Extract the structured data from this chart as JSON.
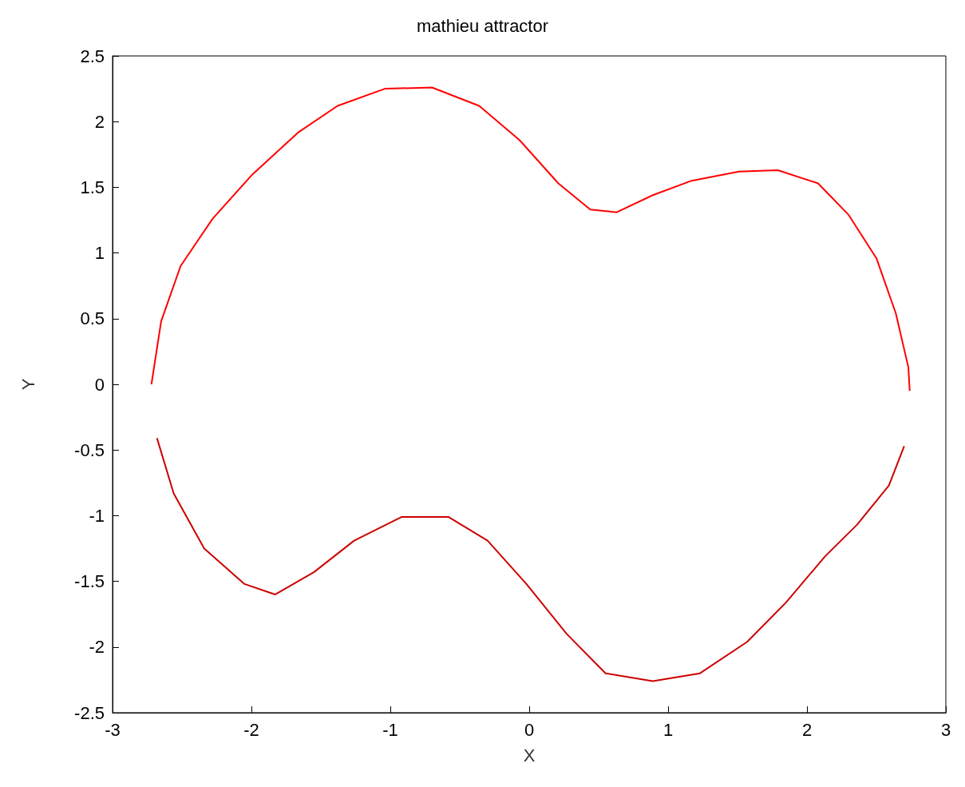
{
  "chart_data": {
    "type": "line",
    "title": "mathieu attractor",
    "xlabel": "X",
    "ylabel": "Y",
    "xlim": [
      -3,
      3
    ],
    "xticks": [
      -3,
      -2,
      -1,
      0,
      1,
      2,
      3
    ],
    "ylim": [
      -2.5,
      2.5
    ],
    "yticks": [
      -2.5,
      -2,
      -1.5,
      -1,
      -0.5,
      0,
      0.5,
      1,
      1.5,
      2,
      2.5
    ],
    "grid": false,
    "marker": "none",
    "line_style": "solid",
    "series": [
      {
        "color": "#ff0000",
        "x": [
          -2.72,
          -2.65,
          -2.51,
          -2.28,
          -2.0,
          -1.66,
          -1.38,
          -1.04,
          -0.7,
          -0.36,
          -0.07,
          0.21,
          0.44,
          0.63,
          0.89,
          1.17,
          1.51,
          1.79,
          2.08,
          2.3,
          2.5,
          2.64,
          2.73,
          2.74
        ],
        "values": [
          0,
          0.48,
          0.9,
          1.26,
          1.59,
          1.92,
          2.12,
          2.25,
          2.26,
          2.12,
          1.86,
          1.53,
          1.33,
          1.31,
          1.44,
          1.55,
          1.62,
          1.63,
          1.53,
          1.29,
          0.96,
          0.54,
          0.13,
          -0.05
        ]
      },
      {
        "color": "#cc0000",
        "x": [
          -2.68,
          -2.56,
          -2.34,
          -2.05,
          -1.83,
          -1.55,
          -1.26,
          -0.92,
          -0.58,
          -0.3,
          -0.02,
          0.27,
          0.55,
          0.89,
          1.23,
          1.57,
          1.85,
          2.13,
          2.36,
          2.59,
          2.7
        ],
        "values": [
          -0.41,
          -0.83,
          -1.25,
          -1.52,
          -1.6,
          -1.43,
          -1.19,
          -1.01,
          -1.01,
          -1.19,
          -1.52,
          -1.9,
          -2.2,
          -2.26,
          -2.2,
          -1.96,
          -1.66,
          -1.31,
          -1.07,
          -0.77,
          -0.47
        ]
      }
    ]
  }
}
